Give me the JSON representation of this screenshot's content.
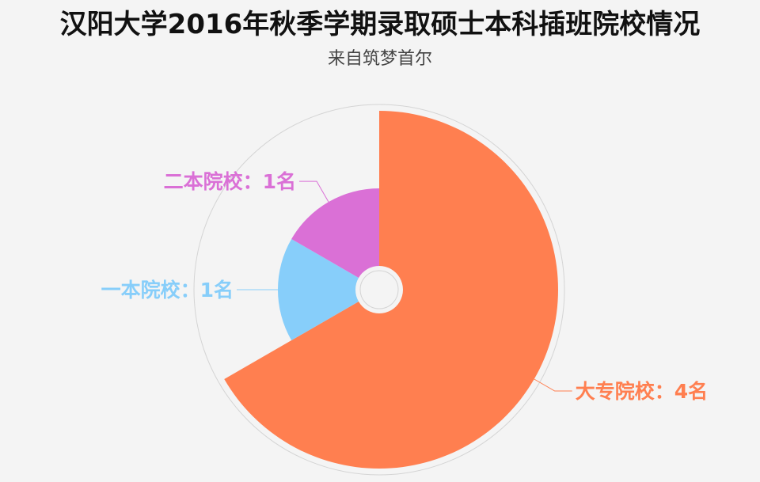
{
  "header": {
    "title": "汉阳大学2016年秋季学期录取硕士本科插班院校情况",
    "subtitle": "来自筑梦首尔"
  },
  "chart_data": {
    "type": "pie",
    "variant": "nightingale-rose",
    "title": "汉阳大学2016年秋季学期录取硕士本科插班院校情况",
    "subtitle": "来自筑梦首尔",
    "unit": "名",
    "slices": [
      {
        "category": "大专院校",
        "value": 4,
        "label": "大专院校：4名",
        "color": "#ff7f50"
      },
      {
        "category": "一本院校",
        "value": 1,
        "label": "一本院校：1名",
        "color": "#87cefa"
      },
      {
        "category": "二本院校",
        "value": 1,
        "label": "二本院校：1名",
        "color": "#da70d6"
      }
    ],
    "start_direction": "top",
    "clockwise": true,
    "legend": "none"
  }
}
